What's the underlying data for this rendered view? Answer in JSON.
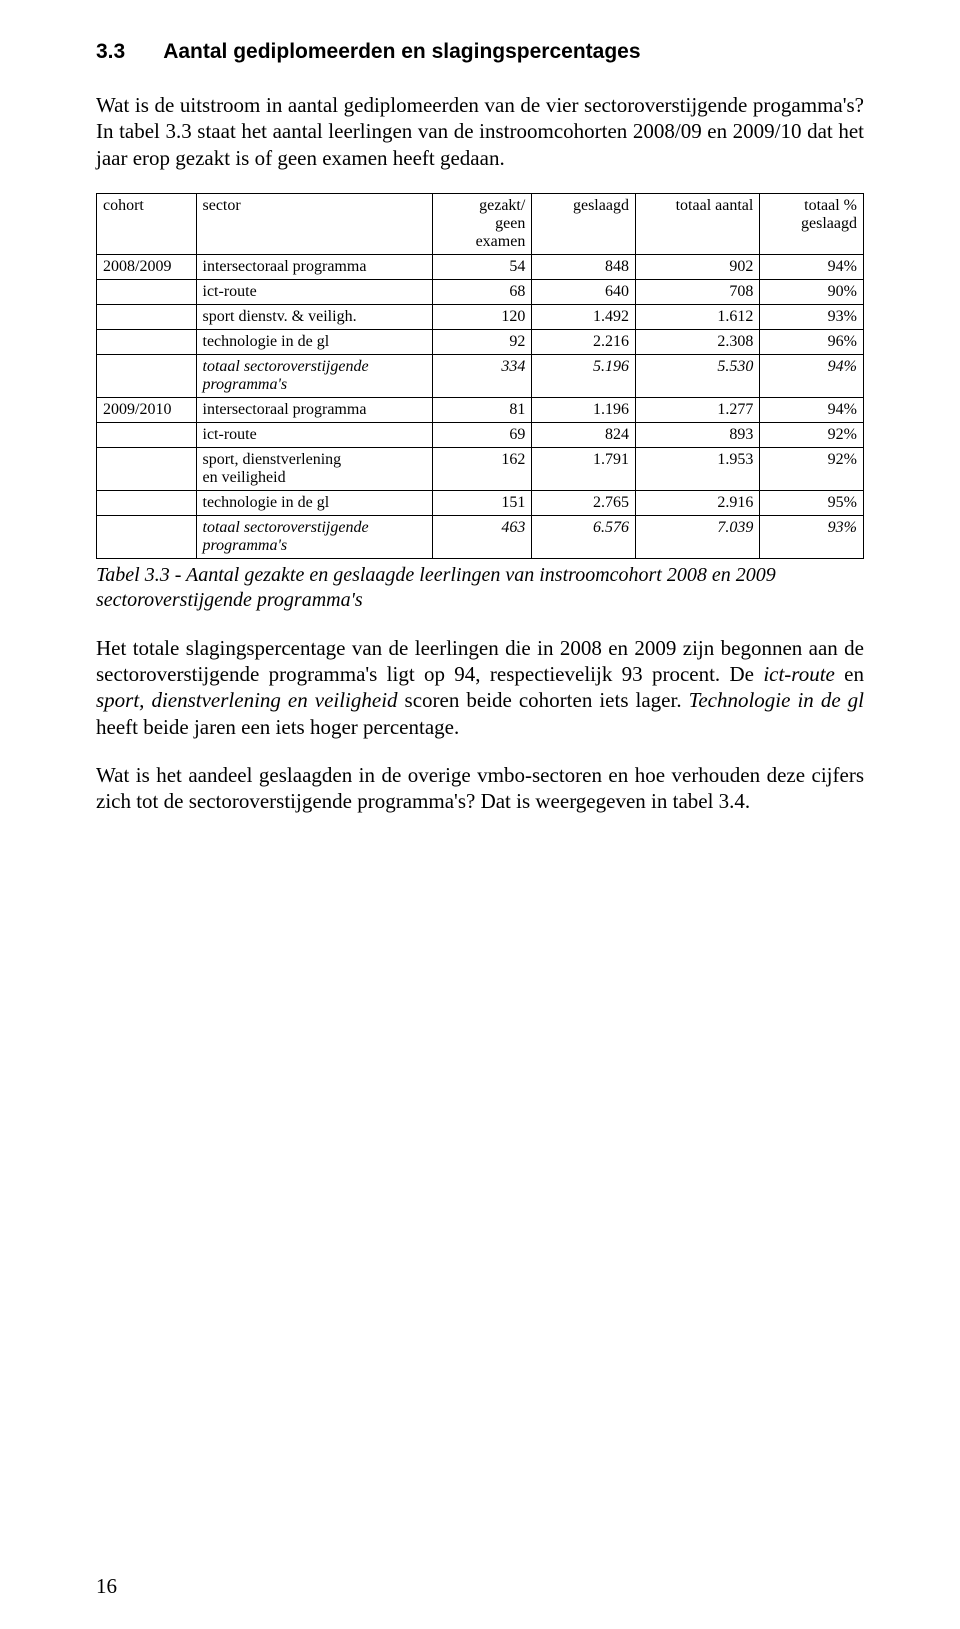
{
  "heading": {
    "number": "3.3",
    "title": "Aantal gediplomeerden en slagingspercentages"
  },
  "para1_a": "Wat is de uitstroom in aantal gediplomeerden van de vier sectoroverstijgende progamma's? In tabel 3.3 staat het aantal leerlingen van de instroomcohorten 2008/09 en 2009/10 dat het jaar erop gezakt is of geen examen heeft gedaan.",
  "table": {
    "headers": {
      "cohort": "cohort",
      "sector": "sector",
      "gezakt_l1": "gezakt/",
      "gezakt_l2": "geen",
      "gezakt_l3": "examen",
      "geslaagd": "geslaagd",
      "totaal_aantal": "totaal aantal",
      "totaal_pct_l1": "totaal %",
      "totaal_pct_l2": "geslaagd"
    },
    "rows": [
      {
        "cohort": "2008/2009",
        "sector": "intersectoraal programma",
        "gezakt": "54",
        "geslaagd": "848",
        "totaal": "902",
        "pct": "94%",
        "italic": false,
        "sector_l2": ""
      },
      {
        "cohort": "",
        "sector": "ict-route",
        "gezakt": "68",
        "geslaagd": "640",
        "totaal": "708",
        "pct": "90%",
        "italic": false,
        "sector_l2": ""
      },
      {
        "cohort": "",
        "sector": "sport dienstv. & veiligh.",
        "gezakt": "120",
        "geslaagd": "1.492",
        "totaal": "1.612",
        "pct": "93%",
        "italic": false,
        "sector_l2": ""
      },
      {
        "cohort": "",
        "sector": "technologie in de gl",
        "gezakt": "92",
        "geslaagd": "2.216",
        "totaal": "2.308",
        "pct": "96%",
        "italic": false,
        "sector_l2": ""
      },
      {
        "cohort": "",
        "sector": "totaal sectoroverstijgende",
        "gezakt": "334",
        "geslaagd": "5.196",
        "totaal": "5.530",
        "pct": "94%",
        "italic": true,
        "sector_l2": "programma's"
      },
      {
        "cohort": "2009/2010",
        "sector": "intersectoraal programma",
        "gezakt": "81",
        "geslaagd": "1.196",
        "totaal": "1.277",
        "pct": "94%",
        "italic": false,
        "sector_l2": ""
      },
      {
        "cohort": "",
        "sector": "ict-route",
        "gezakt": "69",
        "geslaagd": "824",
        "totaal": "893",
        "pct": "92%",
        "italic": false,
        "sector_l2": ""
      },
      {
        "cohort": "",
        "sector": "sport, dienstverlening",
        "gezakt": "162",
        "geslaagd": "1.791",
        "totaal": "1.953",
        "pct": "92%",
        "italic": false,
        "sector_l2": "en veiligheid"
      },
      {
        "cohort": "",
        "sector": "technologie in de gl",
        "gezakt": "151",
        "geslaagd": "2.765",
        "totaal": "2.916",
        "pct": "95%",
        "italic": false,
        "sector_l2": ""
      },
      {
        "cohort": "",
        "sector": "totaal sectoroverstijgende",
        "gezakt": "463",
        "geslaagd": "6.576",
        "totaal": "7.039",
        "pct": "93%",
        "italic": true,
        "sector_l2": "programma's"
      }
    ]
  },
  "caption_a": "Tabel 3.3 - Aantal gezakte en geslaagde leerlingen van instroomcohort 2008 en 2009 sectoroverstijgende programma's",
  "para2_pre": "Het totale slagingspercentage van de leerlingen die in 2008 en 2009 zijn begonnen aan de sectoroverstijgende programma's ligt op 94, respectievelijk 93 procent. De ",
  "para2_it1": "ict-route",
  "para2_mid1": " en ",
  "para2_it2": "sport, dienstverlening en veiligheid",
  "para2_mid2": " scoren beide cohorten iets lager. ",
  "para2_it3": "Technologie in de gl",
  "para2_post": " heeft beide jaren een iets hoger percentage.",
  "para3": "Wat is het aandeel geslaagden in de overige vmbo-sectoren en hoe verhouden deze cijfers zich tot de sectoroverstijgende programma's? Dat is weergegeven in tabel 3.4.",
  "page_number": "16"
}
